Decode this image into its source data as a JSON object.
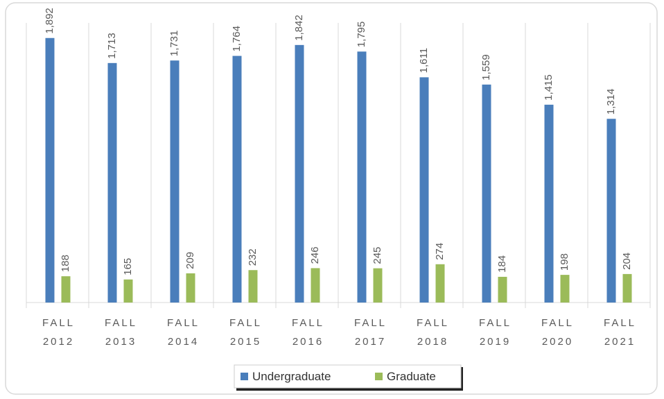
{
  "chart_data": {
    "type": "bar",
    "categories": [
      "FALL 2012",
      "FALL 2013",
      "FALL 2014",
      "FALL 2015",
      "FALL 2016",
      "FALL 2017",
      "FALL 2018",
      "FALL 2019",
      "FALL 2020",
      "FALL 2021"
    ],
    "series": [
      {
        "name": "Undergraduate",
        "color": "#4a7ebb",
        "values": [
          1892,
          1713,
          1731,
          1764,
          1842,
          1795,
          1611,
          1559,
          1415,
          1314
        ],
        "value_labels": [
          "1,892",
          "1,713",
          "1,731",
          "1,764",
          "1,842",
          "1,795",
          "1,611",
          "1,559",
          "1,415",
          "1,314"
        ]
      },
      {
        "name": "Graduate",
        "color": "#9bbb59",
        "values": [
          188,
          165,
          209,
          232,
          246,
          245,
          274,
          184,
          198,
          204
        ]
      }
    ],
    "ylim": [
      0,
      2000
    ],
    "legend": "bottom"
  }
}
